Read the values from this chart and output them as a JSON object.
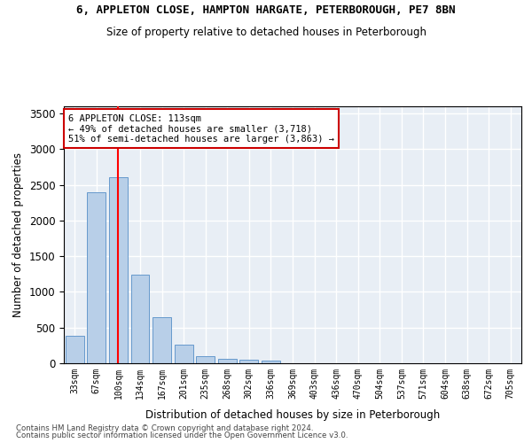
{
  "title1": "6, APPLETON CLOSE, HAMPTON HARGATE, PETERBOROUGH, PE7 8BN",
  "title2": "Size of property relative to detached houses in Peterborough",
  "xlabel": "Distribution of detached houses by size in Peterborough",
  "ylabel": "Number of detached properties",
  "categories": [
    "33sqm",
    "67sqm",
    "100sqm",
    "134sqm",
    "167sqm",
    "201sqm",
    "235sqm",
    "268sqm",
    "302sqm",
    "336sqm",
    "369sqm",
    "403sqm",
    "436sqm",
    "470sqm",
    "504sqm",
    "537sqm",
    "571sqm",
    "604sqm",
    "638sqm",
    "672sqm",
    "705sqm"
  ],
  "values": [
    390,
    2400,
    2610,
    1240,
    640,
    260,
    100,
    60,
    55,
    40,
    0,
    0,
    0,
    0,
    0,
    0,
    0,
    0,
    0,
    0,
    0
  ],
  "bar_color": "#b8cfe8",
  "bar_edge_color": "#6699cc",
  "red_line_x": 2.0,
  "annotation_line1": "6 APPLETON CLOSE: 113sqm",
  "annotation_line2": "← 49% of detached houses are smaller (3,718)",
  "annotation_line3": "51% of semi-detached houses are larger (3,863) →",
  "annotation_box_color": "#ffffff",
  "annotation_box_edge": "#cc0000",
  "ylim": [
    0,
    3600
  ],
  "yticks": [
    0,
    500,
    1000,
    1500,
    2000,
    2500,
    3000,
    3500
  ],
  "background_color": "#e8eef5",
  "grid_color": "#ffffff",
  "footer1": "Contains HM Land Registry data © Crown copyright and database right 2024.",
  "footer2": "Contains public sector information licensed under the Open Government Licence v3.0."
}
